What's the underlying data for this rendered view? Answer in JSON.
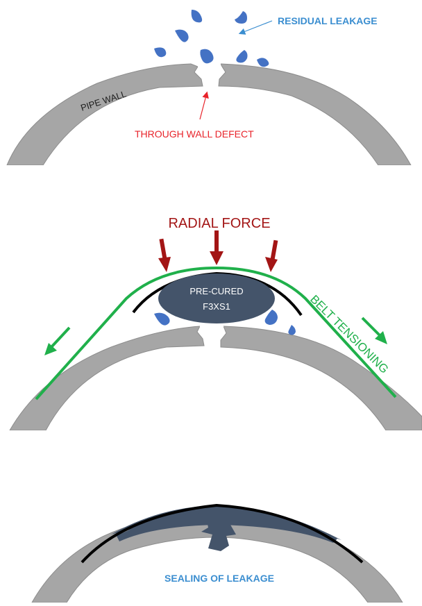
{
  "panel1": {
    "residual_leakage": "RESIDUAL LEAKAGE",
    "pipe_wall": "PIPE WALL",
    "through_wall_defect": "THROUGH WALL DEFECT"
  },
  "panel2": {
    "radial_force": "RADIAL FORCE",
    "pre_cured_line1": "PRE-CURED",
    "pre_cured_line2": "F3XS1",
    "belt_tensioning": "BELT TENSIONING"
  },
  "panel3": {
    "sealing_of_leakage": "SEALING OF LEAKAGE"
  },
  "colors": {
    "pipe": "#a6a6a6",
    "pipe_edge": "#8c8c8c",
    "water": "#4472c4",
    "patch": "#44546a",
    "belt": "#20b04b",
    "force_arrow": "#a31515",
    "leak_arrow": "#3b8ed0",
    "defect_arrow": "#e8232a"
  }
}
